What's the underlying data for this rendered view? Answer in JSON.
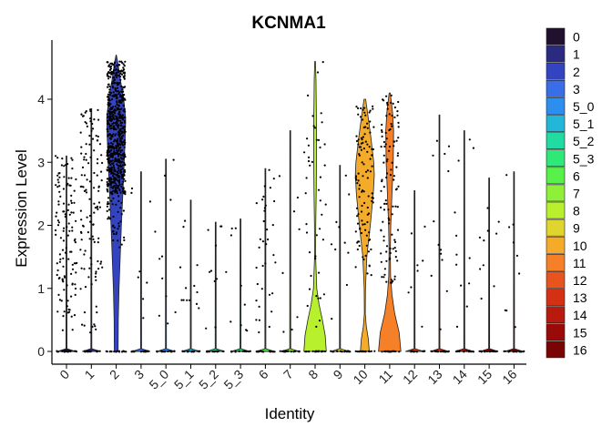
{
  "chart_data": {
    "type": "violin",
    "title": "KCNMA1",
    "xlabel": "Identity",
    "ylabel": "Expression Level",
    "ylim": [
      -0.2,
      4.9
    ],
    "yticks": [
      0,
      1,
      2,
      3,
      4
    ],
    "categories": [
      "0",
      "1",
      "2",
      "3",
      "5_0",
      "5_1",
      "5_2",
      "5_3",
      "6",
      "7",
      "8",
      "9",
      "10",
      "11",
      "12",
      "13",
      "14",
      "15",
      "16"
    ],
    "max_expression": [
      3.1,
      3.85,
      4.7,
      2.85,
      3.05,
      2.4,
      2.05,
      2.1,
      2.9,
      3.5,
      4.6,
      2.95,
      4.0,
      4.1,
      2.55,
      3.75,
      3.5,
      2.75,
      2.85
    ],
    "violin_shape": [
      [],
      [],
      [
        [
          0.0,
          0.2
        ],
        [
          0.5,
          0.22
        ],
        [
          1.0,
          0.3
        ],
        [
          1.5,
          0.42
        ],
        [
          2.0,
          0.55
        ],
        [
          2.5,
          0.7
        ],
        [
          3.0,
          0.85
        ],
        [
          3.4,
          0.95
        ],
        [
          3.7,
          1.0
        ],
        [
          4.0,
          0.8
        ],
        [
          4.3,
          0.45
        ],
        [
          4.6,
          0.15
        ],
        [
          4.7,
          0.02
        ]
      ],
      [],
      [],
      [],
      [],
      [],
      [],
      [],
      [
        [
          0.0,
          1.0
        ],
        [
          0.25,
          0.9
        ],
        [
          0.5,
          0.65
        ],
        [
          0.75,
          0.35
        ],
        [
          1.0,
          0.15
        ],
        [
          1.5,
          0.05
        ],
        [
          2.0,
          0.06
        ],
        [
          2.5,
          0.1
        ],
        [
          3.0,
          0.12
        ],
        [
          3.5,
          0.13
        ],
        [
          4.0,
          0.1
        ],
        [
          4.3,
          0.08
        ],
        [
          4.6,
          0.03
        ]
      ],
      [],
      [
        [
          0.0,
          0.45
        ],
        [
          0.2,
          0.35
        ],
        [
          0.4,
          0.15
        ],
        [
          0.6,
          0.05
        ],
        [
          1.0,
          0.06
        ],
        [
          1.5,
          0.2
        ],
        [
          2.0,
          0.55
        ],
        [
          2.5,
          0.85
        ],
        [
          2.8,
          0.95
        ],
        [
          3.0,
          0.9
        ],
        [
          3.4,
          0.6
        ],
        [
          3.7,
          0.35
        ],
        [
          4.0,
          0.08
        ]
      ],
      [
        [
          0.0,
          1.0
        ],
        [
          0.3,
          0.85
        ],
        [
          0.6,
          0.45
        ],
        [
          0.9,
          0.2
        ],
        [
          1.2,
          0.08
        ],
        [
          1.6,
          0.06
        ],
        [
          2.0,
          0.1
        ],
        [
          2.5,
          0.2
        ],
        [
          3.0,
          0.32
        ],
        [
          3.5,
          0.35
        ],
        [
          3.8,
          0.25
        ],
        [
          4.1,
          0.05
        ]
      ],
      [],
      [],
      [],
      [],
      []
    ],
    "violin_width_scale": [
      0,
      0,
      0.38,
      0,
      0,
      0,
      0,
      0,
      0,
      0,
      0.45,
      0,
      0.4,
      0.45,
      0,
      0,
      0,
      0,
      0
    ],
    "colors": [
      "#22112e",
      "#2a2a80",
      "#3444c0",
      "#3a6de8",
      "#2e8ef0",
      "#22b7d8",
      "#22dba0",
      "#2ee877",
      "#58f04a",
      "#8ff03a",
      "#b8f02e",
      "#e0d52e",
      "#f5ab2a",
      "#f58028",
      "#e8541e",
      "#d43114",
      "#b81a0e",
      "#9a0a08",
      "#7a0404"
    ],
    "legend_position": "right",
    "grid": false
  }
}
